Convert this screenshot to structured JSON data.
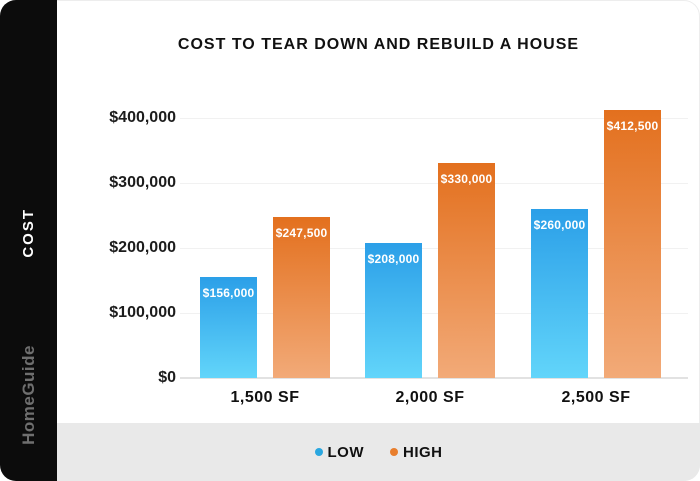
{
  "sidebar": {
    "axis_label": "COST",
    "brand": "HomeGuide"
  },
  "colors": {
    "sidebar_bg": "#0c0c0c",
    "footer_bg": "#e9e9e9",
    "low_accent": "#2aa7e0",
    "high_accent": "#e87e2d",
    "gridline": "#f1f1f1",
    "baseline": "#e2e2e2",
    "text": "#111111",
    "brand_gray": "#6f6f6f",
    "bar_label": "#ffffff"
  },
  "legend": [
    {
      "label": "LOW",
      "dot_color": "#2aa7e0"
    },
    {
      "label": "HIGH",
      "dot_color": "#e87e2d"
    }
  ],
  "chart_data": {
    "type": "bar",
    "title": "COST TO TEAR DOWN AND REBUILD A HOUSE",
    "xlabel": "",
    "ylabel": "COST",
    "categories": [
      "1,500 SF",
      "2,000 SF",
      "2,500 SF"
    ],
    "series": [
      {
        "name": "LOW",
        "values": [
          156000,
          208000,
          260000
        ],
        "labels": [
          "$156,000",
          "$208,000",
          "$260,000"
        ],
        "gradient_top": "#2b9fe8",
        "gradient_bottom": "#62d5fa"
      },
      {
        "name": "HIGH",
        "values": [
          247500,
          330000,
          412500
        ],
        "labels": [
          "$247,500",
          "$330,000",
          "$412,500"
        ],
        "gradient_top": "#e3701e",
        "gradient_bottom": "#f2aa78"
      }
    ],
    "yticks": [
      {
        "value": 0,
        "label": "$0"
      },
      {
        "value": 100000,
        "label": "$100,000"
      },
      {
        "value": 200000,
        "label": "$200,000"
      },
      {
        "value": 300000,
        "label": "$300,000"
      },
      {
        "value": 400000,
        "label": "$400,000"
      }
    ],
    "ylim": [
      0,
      450000
    ],
    "grid": true,
    "legend_position": "bottom"
  }
}
